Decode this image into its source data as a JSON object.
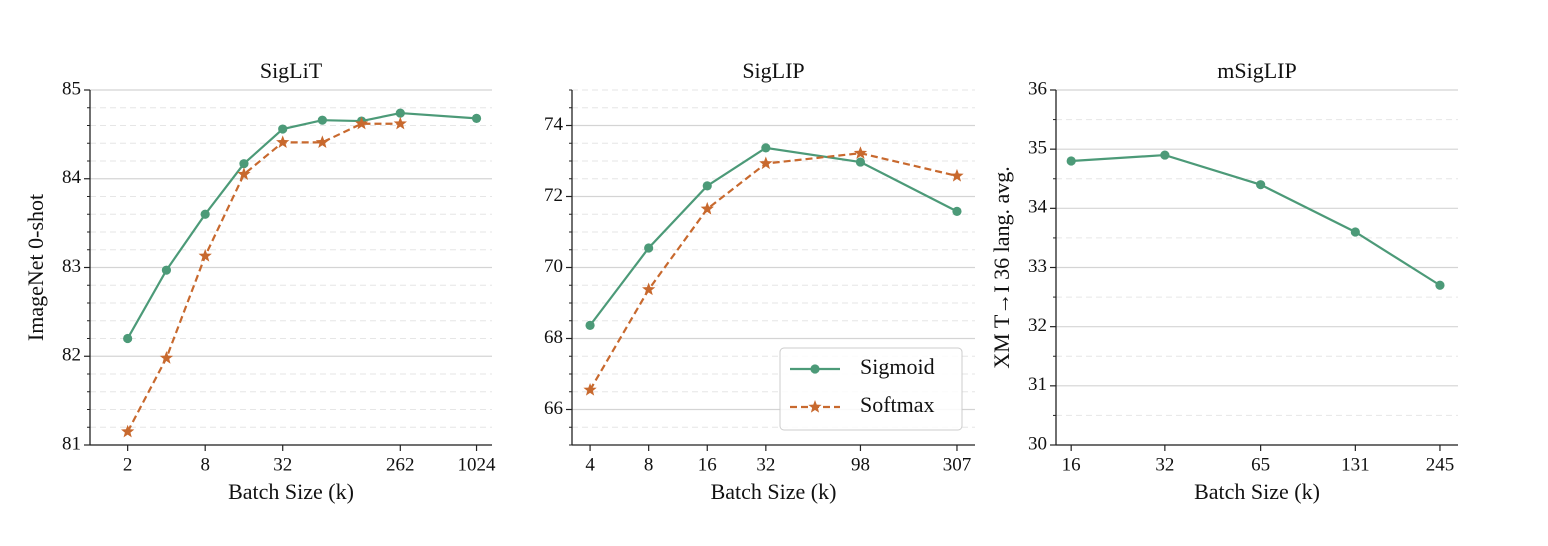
{
  "chart_data": [
    {
      "type": "line",
      "title": "SigLiT",
      "xlabel": "Batch Size (k)",
      "ylabel": "ImageNet 0-shot",
      "x": [
        2,
        4,
        8,
        16,
        32,
        65,
        131,
        262,
        1024
      ],
      "xscale": "log",
      "xlim": [
        1.02,
        1350
      ],
      "xticks": [
        2,
        8,
        32,
        262,
        1024
      ],
      "ylim": [
        81,
        85
      ],
      "yticks": [
        81,
        82,
        83,
        84,
        85
      ],
      "minor_yticks": [
        81.2,
        81.4,
        81.6,
        81.8,
        82.2,
        82.4,
        82.6,
        82.8,
        83.2,
        83.4,
        83.6,
        83.8,
        84.2,
        84.4,
        84.6,
        84.8
      ],
      "grid": true,
      "series": [
        {
          "name": "Sigmoid",
          "color": "#4c9a78",
          "marker": "circle",
          "linestyle": "solid",
          "values": [
            82.2,
            82.97,
            83.6,
            84.17,
            84.56,
            84.66,
            84.65,
            84.74,
            84.68
          ]
        },
        {
          "name": "Softmax",
          "color": "#c8692e",
          "marker": "star",
          "linestyle": "dashed",
          "values": [
            81.15,
            81.98,
            83.13,
            84.05,
            84.41,
            84.41,
            84.62,
            84.62,
            null
          ]
        }
      ]
    },
    {
      "type": "line",
      "title": "SigLIP",
      "xlabel": "Batch Size (k)",
      "x": [
        4,
        8,
        16,
        32,
        98,
        307
      ],
      "xscale": "log",
      "xlim": [
        3.23,
        380
      ],
      "xticks": [
        4,
        8,
        16,
        32,
        98,
        307
      ],
      "ylim": [
        65,
        75
      ],
      "yticks": [
        66,
        68,
        70,
        72,
        74
      ],
      "minor_yticks": [
        65,
        65.5,
        66.5,
        67,
        67.5,
        68.5,
        69,
        69.5,
        70.5,
        71,
        71.5,
        72.5,
        73,
        73.5,
        74.5,
        75
      ],
      "grid": true,
      "legend": "lower right",
      "series": [
        {
          "name": "Sigmoid",
          "color": "#4c9a78",
          "marker": "circle",
          "linestyle": "solid",
          "values": [
            68.37,
            70.55,
            72.3,
            73.37,
            72.97,
            71.58
          ]
        },
        {
          "name": "Softmax",
          "color": "#c8692e",
          "marker": "star",
          "linestyle": "dashed",
          "values": [
            66.55,
            69.38,
            71.65,
            72.93,
            73.22,
            72.58
          ]
        }
      ]
    },
    {
      "type": "line",
      "title": "mSigLIP",
      "xlabel": "Batch Size (k)",
      "ylabel": "XM T→I 36 lang. avg.",
      "x": [
        16,
        32,
        65,
        131,
        245
      ],
      "xscale": "log",
      "xlim": [
        14.3,
        280
      ],
      "xticks": [
        16,
        32,
        65,
        131,
        245
      ],
      "ylim": [
        30,
        36
      ],
      "yticks": [
        30,
        31,
        32,
        33,
        34,
        35,
        36
      ],
      "minor_yticks": [
        30.5,
        31.5,
        32.5,
        33.5,
        34.5,
        35.5
      ],
      "grid": true,
      "series": [
        {
          "name": "Sigmoid",
          "color": "#4c9a78",
          "marker": "circle",
          "linestyle": "solid",
          "values": [
            34.8,
            34.9,
            34.4,
            33.6,
            32.7
          ]
        }
      ]
    }
  ]
}
